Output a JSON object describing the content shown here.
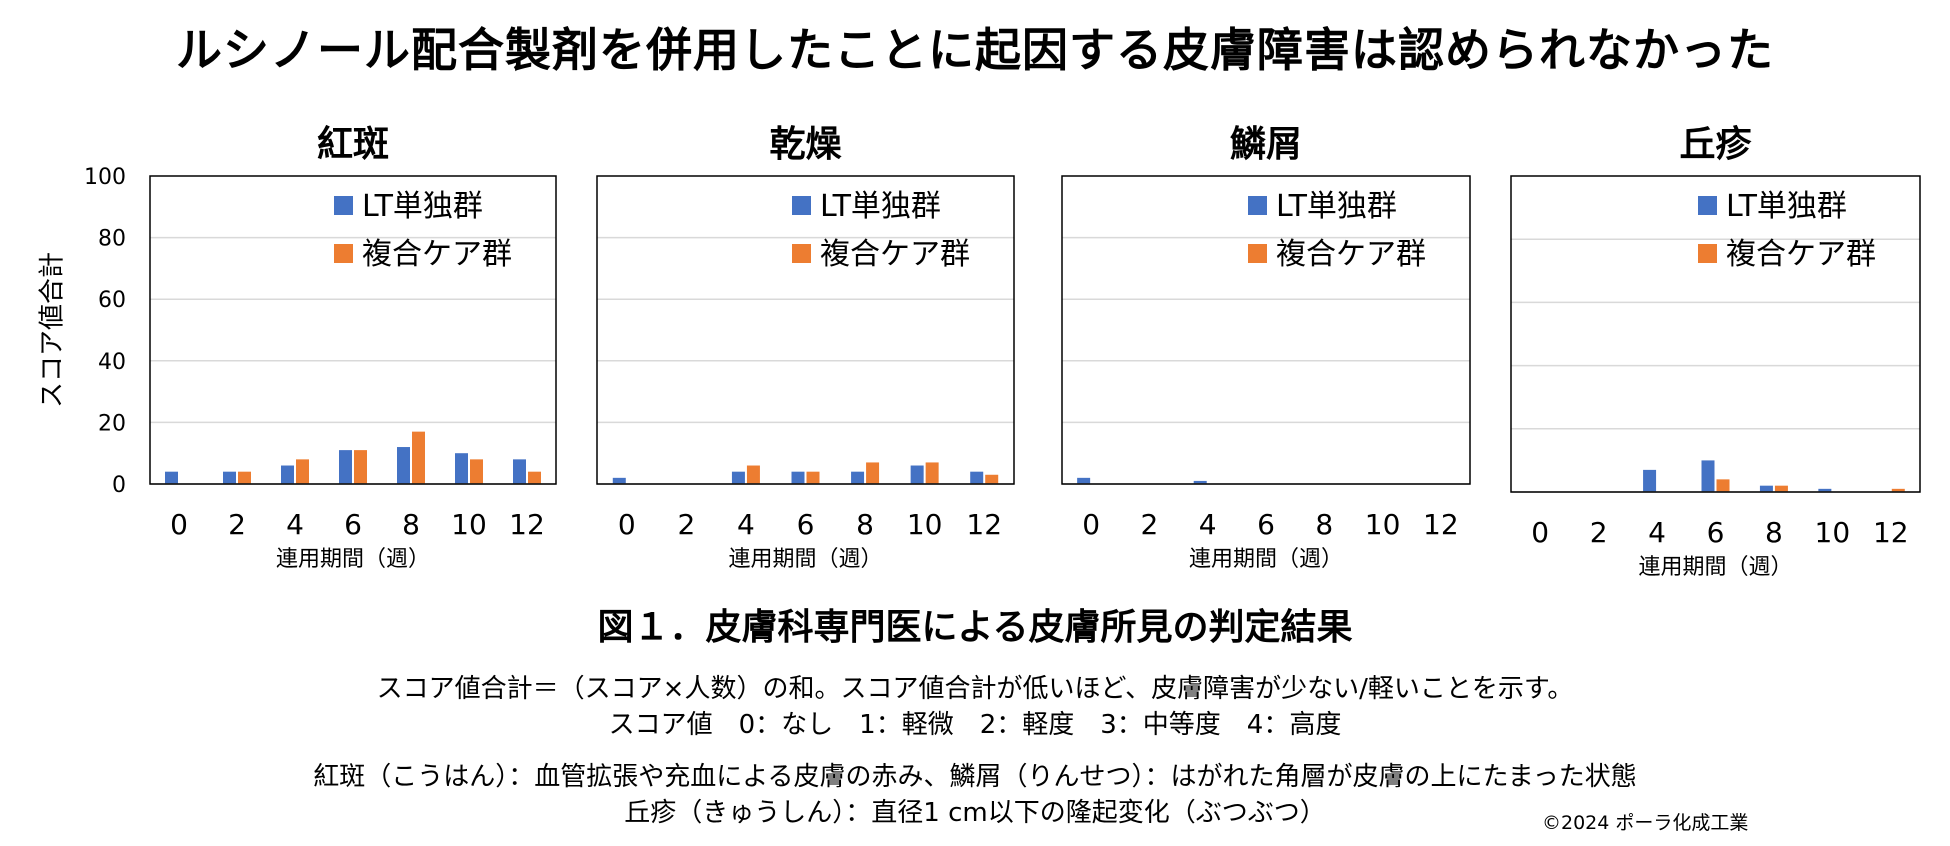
{
  "headline": "ルシノール配合製剤を併用したことに起因する皮膚障害は認められなかった",
  "y_axis_label": "スコア値合計",
  "figure_caption": "図１．皮膚科専門医による皮膚所見の判定結果",
  "notes": [
    "スコア値合計＝（スコア×人数）の和。スコア値合計が低いほど、皮膚障害が少ない/軽いことを示す。",
    "スコア値　0：なし　1：軽微　2：軽度　3：中等度　4：高度",
    "紅斑（こうはん）：血管拡張や充血による皮膚の赤み、鱗屑（りんせつ）：はがれた角層が皮膚の上にたまった状態",
    "丘疹（きゅうしん）：直径1 cm以下の隆起変化（ぶつぶつ）"
  ],
  "copyright": "©2024 ポーラ化成工業",
  "colors": {
    "lt_only": "#4472C4",
    "combined": "#ED7D31"
  },
  "chart_data": [
    {
      "type": "bar",
      "title": "紅斑",
      "categories": [
        "0",
        "2",
        "4",
        "6",
        "8",
        "10",
        "12"
      ],
      "xlabel": "連用期間（週）",
      "ylabel": "スコア値合計",
      "ylim": [
        0,
        100
      ],
      "yticks": [
        "0",
        "20",
        "40",
        "60",
        "80",
        "100"
      ],
      "grid": true,
      "legend": "top-right",
      "series": [
        {
          "name": "LT単独群",
          "values": [
            4,
            4,
            6,
            11,
            12,
            10,
            8
          ]
        },
        {
          "name": "複合ケア群",
          "values": [
            0,
            4,
            8,
            11,
            17,
            8,
            4
          ]
        }
      ]
    },
    {
      "type": "bar",
      "title": "乾燥",
      "categories": [
        "0",
        "2",
        "4",
        "6",
        "8",
        "10",
        "12"
      ],
      "xlabel": "連用期間（週）",
      "ylim": [
        0,
        100
      ],
      "grid": true,
      "legend": "top-right",
      "series": [
        {
          "name": "LT単独群",
          "values": [
            2,
            0,
            4,
            4,
            4,
            6,
            4
          ]
        },
        {
          "name": "複合ケア群",
          "values": [
            0,
            0,
            6,
            4,
            7,
            7,
            3
          ]
        }
      ]
    },
    {
      "type": "bar",
      "title": "鱗屑",
      "categories": [
        "0",
        "2",
        "4",
        "6",
        "8",
        "10",
        "12"
      ],
      "xlabel": "連用期間（週）",
      "ylim": [
        0,
        100
      ],
      "grid": true,
      "legend": "top-right",
      "series": [
        {
          "name": "LT単独群",
          "values": [
            2,
            0,
            1,
            0,
            0,
            0,
            0
          ]
        },
        {
          "name": "複合ケア群",
          "values": [
            0,
            0,
            0,
            0,
            0,
            0,
            0
          ]
        }
      ]
    },
    {
      "type": "bar",
      "title": "丘疹",
      "categories": [
        "0",
        "2",
        "4",
        "6",
        "8",
        "10",
        "12"
      ],
      "xlabel": "連用期間（週）",
      "ylim": [
        0,
        100
      ],
      "grid": true,
      "legend": "top-right",
      "series": [
        {
          "name": "LT単独群",
          "values": [
            0,
            0,
            7,
            10,
            2,
            1,
            0
          ]
        },
        {
          "name": "複合ケア群",
          "values": [
            0,
            0,
            0,
            4,
            2,
            0,
            1
          ]
        }
      ]
    }
  ]
}
